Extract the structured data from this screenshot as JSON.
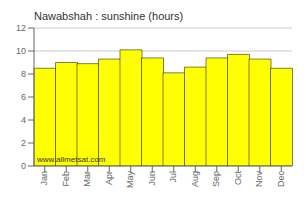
{
  "chart_data": {
    "type": "bar",
    "title": "Nawabshah : sunshine (hours)",
    "categories": [
      "Jan",
      "Feb",
      "Mar",
      "Apr",
      "May",
      "Jun",
      "Jul",
      "Aug",
      "Sep",
      "Oct",
      "Nov",
      "Dec"
    ],
    "values": [
      8.5,
      9.0,
      8.9,
      9.3,
      10.1,
      9.4,
      8.1,
      8.6,
      9.4,
      9.7,
      9.3,
      8.5
    ],
    "color": "#FFFF00",
    "ylim": [
      0,
      12
    ],
    "yticks": [
      0,
      2,
      4,
      6,
      8,
      10,
      12
    ],
    "grid": true,
    "annotations": [
      "www.allmetsat.com"
    ]
  }
}
